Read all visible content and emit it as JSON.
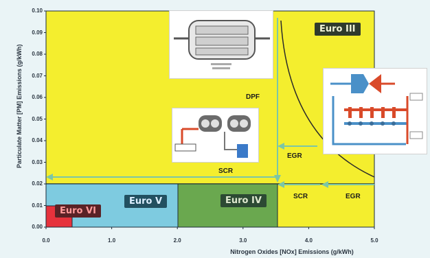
{
  "axes": {
    "ylabel": "Particulate Matter [PM] Emissions (g/kWh)",
    "xlabel": "Nitrogen Oxides [NOx] Emissions (g/kWh)",
    "yticks": [
      "0.10",
      "0.09",
      "0.08",
      "0.07",
      "0.06",
      "0.05",
      "0.04",
      "0.03",
      "0.02",
      "0.01",
      "0.00"
    ],
    "xticks": [
      "0.0",
      "1.0",
      "2.0",
      "3.0",
      "4.0",
      "5.0"
    ]
  },
  "regions": {
    "euro3": "Euro III",
    "euro4": "Euro IV",
    "euro5": "Euro V",
    "euro6": "Euro VI"
  },
  "technologies": {
    "dpf": "DPF",
    "egr_upper": "EGR",
    "egr_lower": "EGR",
    "scr_upper": "SCR",
    "scr_lower": "SCR"
  },
  "colors": {
    "euro3_fill": "#f4ee2e",
    "euro4_fill": "#6aa84f",
    "euro5_fill": "#7ecbe0",
    "euro6_fill": "#e6323c",
    "arrows": "#7cc6a6",
    "frame": "#1b2b3a"
  },
  "chart_data": {
    "type": "diagram",
    "xlabel": "Nitrogen Oxides [NOx] Emissions (g/kWh)",
    "ylabel": "Particulate Matter [PM] Emissions (g/kWh)",
    "xlim": [
      0,
      5
    ],
    "ylim": [
      0,
      0.1
    ],
    "regions": [
      {
        "name": "Euro III",
        "nox_max": 5.0,
        "pm_max": 0.1
      },
      {
        "name": "Euro IV",
        "nox_max": 3.5,
        "pm_max": 0.02
      },
      {
        "name": "Euro V",
        "nox_max": 2.0,
        "pm_max": 0.02
      },
      {
        "name": "Euro VI",
        "nox_max": 0.4,
        "pm_max": 0.01
      }
    ]
  }
}
